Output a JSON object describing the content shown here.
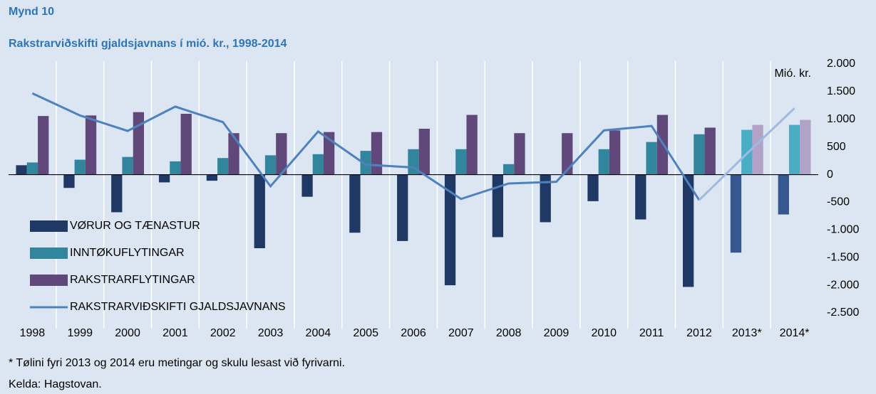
{
  "chart_data": {
    "type": "bar_line",
    "figure_label": "Mynd 10",
    "title": "Rakstrarviðskifti gjaldsjavnans í mió. kr., 1998-2014",
    "unit_label": "Mió. kr.",
    "categories": [
      "1998",
      "1999",
      "2000",
      "2001",
      "2002",
      "2003",
      "2004",
      "2005",
      "2006",
      "2007",
      "2008",
      "2009",
      "2010",
      "2011",
      "2012",
      "2013*",
      "2014*"
    ],
    "series": [
      {
        "name": "VØRUR OG TÆNASTUR",
        "kind": "bar",
        "color": "#1f3864",
        "colors": [
          "#1f3864",
          "#1f3864",
          "#1f3864",
          "#1f3864",
          "#1f3864",
          "#1f3864",
          "#1f3864",
          "#1f3864",
          "#1f3864",
          "#1f3864",
          "#1f3864",
          "#1f3864",
          "#1f3864",
          "#1f3864",
          "#1f3864",
          "#34588f",
          "#34588f"
        ],
        "values": [
          170,
          -240,
          -680,
          -140,
          -110,
          -1330,
          -400,
          -1050,
          -1200,
          -2000,
          -1130,
          -860,
          -480,
          -810,
          -2030,
          -1410,
          -720
        ]
      },
      {
        "name": "INNTØKUFLYTINGAR",
        "kind": "bar",
        "color": "#31859c",
        "colors": [
          "#31859c",
          "#31859c",
          "#31859c",
          "#31859c",
          "#31859c",
          "#31859c",
          "#31859c",
          "#31859c",
          "#31859c",
          "#31859c",
          "#31859c",
          "#31859c",
          "#31859c",
          "#31859c",
          "#31859c",
          "#4bacc6",
          "#4bacc6"
        ],
        "values": [
          220,
          270,
          320,
          240,
          300,
          350,
          370,
          430,
          460,
          460,
          190,
          0,
          460,
          590,
          730,
          810,
          900
        ]
      },
      {
        "name": "RAKSTRARFLYTINGAR",
        "kind": "bar",
        "color": "#60497a",
        "colors": [
          "#60497a",
          "#60497a",
          "#60497a",
          "#60497a",
          "#60497a",
          "#60497a",
          "#60497a",
          "#60497a",
          "#60497a",
          "#60497a",
          "#60497a",
          "#60497a",
          "#60497a",
          "#60497a",
          "#60497a",
          "#b3a2c7",
          "#b3a2c7"
        ],
        "values": [
          1060,
          1070,
          1130,
          1100,
          750,
          750,
          770,
          770,
          830,
          1080,
          750,
          750,
          800,
          1080,
          850,
          900,
          990
        ]
      },
      {
        "name": "RAKSTRARVIÐSKIFTI GJALDSJAVNANS",
        "kind": "line",
        "color": "#4f81bd",
        "colors": [
          "#4f81bd",
          "#4f81bd",
          "#4f81bd",
          "#4f81bd",
          "#4f81bd",
          "#4f81bd",
          "#4f81bd",
          "#4f81bd",
          "#4f81bd",
          "#4f81bd",
          "#4f81bd",
          "#4f81bd",
          "#4f81bd",
          "#4f81bd",
          "#4f81bd",
          "#9dbbe0",
          "#9dbbe0"
        ],
        "values": [
          1470,
          1070,
          790,
          1230,
          950,
          -210,
          780,
          180,
          130,
          -440,
          -160,
          -130,
          800,
          880,
          -460,
          380,
          1200
        ]
      }
    ],
    "ylim": [
      -2500,
      2000
    ],
    "yticks": [
      {
        "value": 2000,
        "label": "2.000"
      },
      {
        "value": 1500,
        "label": "1.500"
      },
      {
        "value": 1000,
        "label": "1.000"
      },
      500,
      0,
      -500,
      {
        "value": -1000,
        "label": "-1.000"
      },
      {
        "value": -1500,
        "label": "-1.500"
      },
      {
        "value": -2000,
        "label": "-2.000"
      },
      {
        "value": -2500,
        "label": "-2.500"
      }
    ],
    "footnote": "* Tølini fyri 2013 og 2014 eru metingar og skulu lesast við fyrivarni.",
    "source": "Kelda: Hagstovan."
  }
}
